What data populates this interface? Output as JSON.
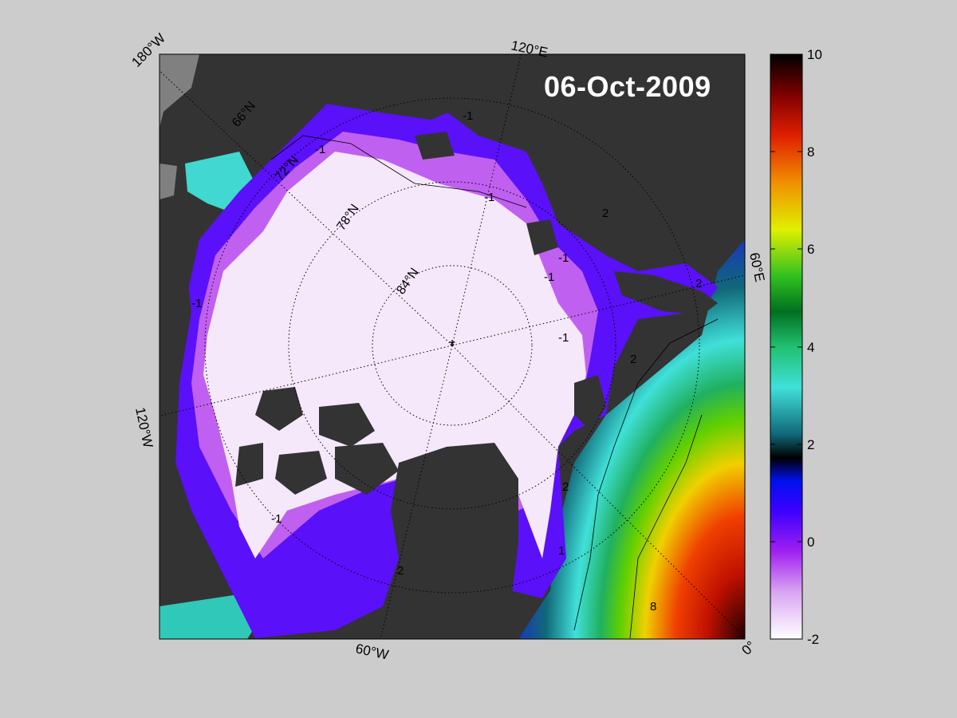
{
  "title": {
    "date": "06-Oct-2009"
  },
  "map": {
    "projection": "north polar stereographic",
    "pole_marker": "*",
    "longitude_labels": [
      "180°W",
      "120°E",
      "60°E",
      "0°",
      "60°W",
      "120°W"
    ],
    "latitude_labels": [
      "66°N",
      "72°N",
      "78°N",
      "84°N"
    ],
    "contour_labels": [
      "-1",
      "-1",
      "-1",
      "-1",
      "-1",
      "-1",
      "-1",
      "-1",
      "-1",
      "2",
      "2",
      "2",
      "2",
      "2",
      "1",
      "8",
      "-1",
      "2"
    ],
    "land_color": "#333333",
    "ocean_missing_color": "#808080"
  },
  "colorbar": {
    "min": -2,
    "max": 10,
    "tick_labels": [
      "10",
      "8",
      "6",
      "4",
      "2",
      "0",
      "-2"
    ],
    "colormap": [
      "#ffffff",
      "#c46cf0",
      "#8a00ff",
      "#1a00ff",
      "#000000",
      "#107078",
      "#40e8e0",
      "#00b050",
      "#60d000",
      "#f0f000",
      "#f08000",
      "#e00000",
      "#000000"
    ]
  },
  "colors": {
    "background": "#cccccc",
    "title_text": "#ffffff"
  }
}
